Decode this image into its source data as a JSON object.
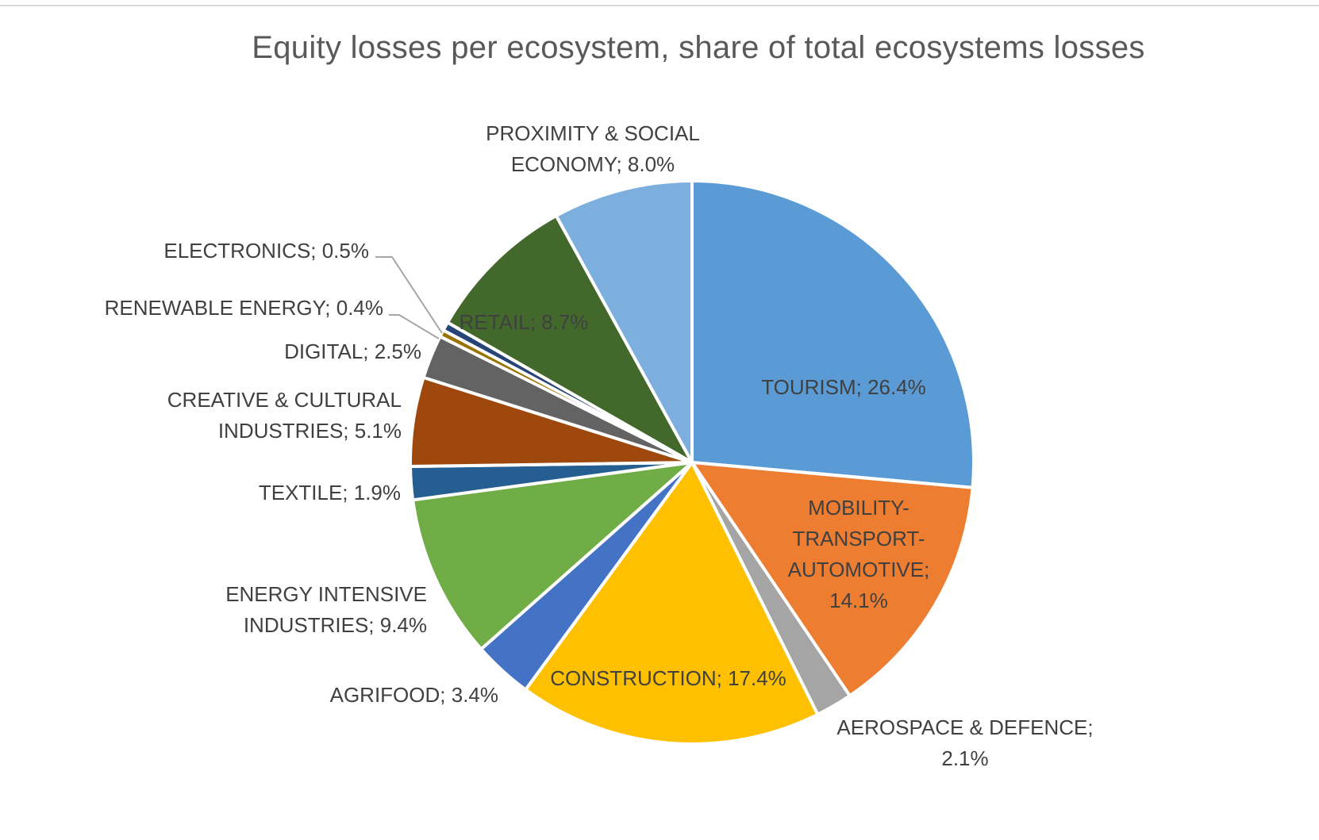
{
  "chart_data": {
    "type": "pie",
    "title": "Equity losses per ecosystem, share of total ecosystems losses",
    "colors": {
      "tourism": "#5b9bd5",
      "mobility": "#ed7d31",
      "aerospace": "#a5a5a5",
      "construction": "#ffc000",
      "agrifood": "#4472c4",
      "energy_intensive": "#70ad47",
      "textile": "#255e91",
      "creative": "#9e480e",
      "digital": "#636363",
      "renewable": "#997300",
      "electronics": "#264478",
      "retail": "#43682b",
      "proximity": "#7cafdd"
    },
    "slices": [
      {
        "key": "tourism",
        "category": "TOURISM",
        "value": 26.4,
        "label_lines": [
          "TOURISM; 26.4%"
        ]
      },
      {
        "key": "mobility",
        "category": "MOBILITY-TRANSPORT-AUTOMOTIVE",
        "value": 14.1,
        "label_lines": [
          "MOBILITY-",
          "TRANSPORT-",
          "AUTOMOTIVE;",
          "14.1%"
        ]
      },
      {
        "key": "aerospace",
        "category": "AEROSPACE & DEFENCE",
        "value": 2.1,
        "label_lines": [
          "AEROSPACE & DEFENCE;",
          "2.1%"
        ]
      },
      {
        "key": "construction",
        "category": "CONSTRUCTION",
        "value": 17.4,
        "label_lines": [
          "CONSTRUCTION; 17.4%"
        ]
      },
      {
        "key": "agrifood",
        "category": "AGRIFOOD",
        "value": 3.4,
        "label_lines": [
          "AGRIFOOD; 3.4%"
        ]
      },
      {
        "key": "energy_intensive",
        "category": "ENERGY INTENSIVE INDUSTRIES",
        "value": 9.4,
        "label_lines": [
          "ENERGY INTENSIVE",
          "INDUSTRIES; 9.4%"
        ]
      },
      {
        "key": "textile",
        "category": "TEXTILE",
        "value": 1.9,
        "label_lines": [
          "TEXTILE; 1.9%"
        ]
      },
      {
        "key": "creative",
        "category": "CREATIVE & CULTURAL INDUSTRIES",
        "value": 5.1,
        "label_lines": [
          "CREATIVE & CULTURAL",
          "INDUSTRIES; 5.1%"
        ]
      },
      {
        "key": "digital",
        "category": "DIGITAL",
        "value": 2.5,
        "label_lines": [
          "DIGITAL; 2.5%"
        ]
      },
      {
        "key": "renewable",
        "category": "RENEWABLE ENERGY",
        "value": 0.4,
        "label_lines": [
          "RENEWABLE ENERGY; 0.4%"
        ]
      },
      {
        "key": "electronics",
        "category": "ELECTRONICS",
        "value": 0.5,
        "label_lines": [
          "ELECTRONICS; 0.5%"
        ]
      },
      {
        "key": "retail",
        "category": "RETAIL",
        "value": 8.7,
        "label_lines": [
          "RETAIL; 8.7%"
        ]
      },
      {
        "key": "proximity",
        "category": "PROXIMITY & SOCIAL ECONOMY",
        "value": 8.0,
        "label_lines": [
          "PROXIMITY & SOCIAL",
          "ECONOMY; 8.0%"
        ]
      }
    ]
  }
}
